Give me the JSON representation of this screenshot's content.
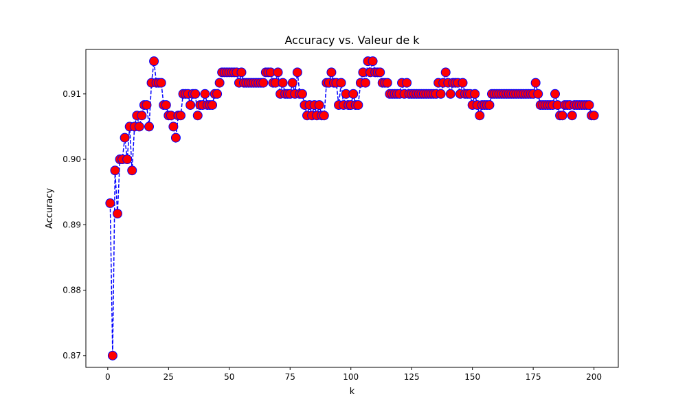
{
  "chart_data": {
    "type": "line",
    "title": "Accuracy vs. Valeur de k",
    "xlabel": "k",
    "ylabel": "Accuracy",
    "xlim": [
      -9,
      210
    ],
    "ylim": [
      0.8682,
      0.9168
    ],
    "xticks": [
      0,
      25,
      50,
      75,
      100,
      125,
      150,
      175,
      200
    ],
    "yticks": [
      0.87,
      0.88,
      0.89,
      0.9,
      0.91
    ],
    "ytick_labels": [
      "0.87",
      "0.88",
      "0.89",
      "0.90",
      "0.91"
    ],
    "grid": false,
    "series": [
      {
        "line_color": "#0000ff",
        "line_style": "dashed",
        "marker": "circle",
        "marker_face_color": "#ff0000",
        "marker_edge_color": "#0000ff",
        "x": [
          1,
          2,
          3,
          4,
          5,
          6,
          7,
          8,
          9,
          10,
          11,
          12,
          13,
          14,
          15,
          16,
          17,
          18,
          19,
          20,
          21,
          22,
          23,
          24,
          25,
          26,
          27,
          28,
          29,
          30,
          31,
          32,
          33,
          34,
          35,
          36,
          37,
          38,
          39,
          40,
          41,
          42,
          43,
          44,
          45,
          46,
          47,
          48,
          49,
          50,
          51,
          52,
          53,
          54,
          55,
          56,
          57,
          58,
          59,
          60,
          61,
          62,
          63,
          64,
          65,
          66,
          67,
          68,
          69,
          70,
          71,
          72,
          73,
          74,
          75,
          76,
          77,
          78,
          79,
          80,
          81,
          82,
          83,
          84,
          85,
          86,
          87,
          88,
          89,
          90,
          91,
          92,
          93,
          94,
          95,
          96,
          97,
          98,
          99,
          100,
          101,
          102,
          103,
          104,
          105,
          106,
          107,
          108,
          109,
          110,
          111,
          112,
          113,
          114,
          115,
          116,
          117,
          118,
          119,
          120,
          121,
          122,
          123,
          124,
          125,
          126,
          127,
          128,
          129,
          130,
          131,
          132,
          133,
          134,
          135,
          136,
          137,
          138,
          139,
          140,
          141,
          142,
          143,
          144,
          145,
          146,
          147,
          148,
          149,
          150,
          151,
          152,
          153,
          154,
          155,
          156,
          157,
          158,
          159,
          160,
          161,
          162,
          163,
          164,
          165,
          166,
          167,
          168,
          169,
          170,
          171,
          172,
          173,
          174,
          175,
          176,
          177,
          178,
          179,
          180,
          181,
          182,
          183,
          184,
          185,
          186,
          187,
          188,
          189,
          190,
          191,
          192,
          193,
          194,
          195,
          196,
          197,
          198,
          199,
          200
        ],
        "y": [
          0.8933,
          0.87,
          0.8983,
          0.8917,
          0.9,
          0.9,
          0.9033,
          0.9,
          0.905,
          0.8983,
          0.905,
          0.9067,
          0.905,
          0.9067,
          0.9083,
          0.9083,
          0.905,
          0.9117,
          0.915,
          0.9117,
          0.9117,
          0.9117,
          0.9083,
          0.9083,
          0.9067,
          0.9067,
          0.905,
          0.9033,
          0.9067,
          0.9067,
          0.91,
          0.91,
          0.91,
          0.9083,
          0.91,
          0.91,
          0.9067,
          0.9083,
          0.9083,
          0.91,
          0.9083,
          0.9083,
          0.9083,
          0.91,
          0.91,
          0.9117,
          0.9133,
          0.9133,
          0.9133,
          0.9133,
          0.9133,
          0.9133,
          0.9133,
          0.9117,
          0.9133,
          0.9117,
          0.9117,
          0.9117,
          0.9117,
          0.9117,
          0.9117,
          0.9117,
          0.9117,
          0.9117,
          0.9133,
          0.9133,
          0.9133,
          0.9117,
          0.9117,
          0.9133,
          0.91,
          0.9117,
          0.91,
          0.91,
          0.91,
          0.9117,
          0.91,
          0.9133,
          0.91,
          0.91,
          0.9083,
          0.9067,
          0.9083,
          0.9067,
          0.9083,
          0.9067,
          0.9083,
          0.9067,
          0.9067,
          0.9117,
          0.9117,
          0.9133,
          0.9117,
          0.9117,
          0.9083,
          0.9117,
          0.9083,
          0.91,
          0.9083,
          0.9083,
          0.91,
          0.9083,
          0.9083,
          0.9117,
          0.9133,
          0.9117,
          0.915,
          0.9133,
          0.915,
          0.9133,
          0.9133,
          0.9133,
          0.9117,
          0.9117,
          0.9117,
          0.91,
          0.91,
          0.91,
          0.91,
          0.91,
          0.9117,
          0.91,
          0.9117,
          0.91,
          0.91,
          0.91,
          0.91,
          0.91,
          0.91,
          0.91,
          0.91,
          0.91,
          0.91,
          0.91,
          0.91,
          0.9117,
          0.91,
          0.9117,
          0.9133,
          0.9117,
          0.91,
          0.9117,
          0.9117,
          0.9117,
          0.91,
          0.9117,
          0.91,
          0.91,
          0.91,
          0.9083,
          0.91,
          0.9083,
          0.9067,
          0.9083,
          0.9083,
          0.9083,
          0.9083,
          0.91,
          0.91,
          0.91,
          0.91,
          0.91,
          0.91,
          0.91,
          0.91,
          0.91,
          0.91,
          0.91,
          0.91,
          0.91,
          0.91,
          0.91,
          0.91,
          0.91,
          0.91,
          0.9117,
          0.91,
          0.9083,
          0.9083,
          0.9083,
          0.9083,
          0.9083,
          0.9083,
          0.91,
          0.9083,
          0.9067,
          0.9067,
          0.9083,
          0.9083,
          0.9083,
          0.9067,
          0.9083,
          0.9083,
          0.9083,
          0.9083,
          0.9083,
          0.9083,
          0.9083,
          0.9067,
          0.9067
        ]
      }
    ]
  }
}
